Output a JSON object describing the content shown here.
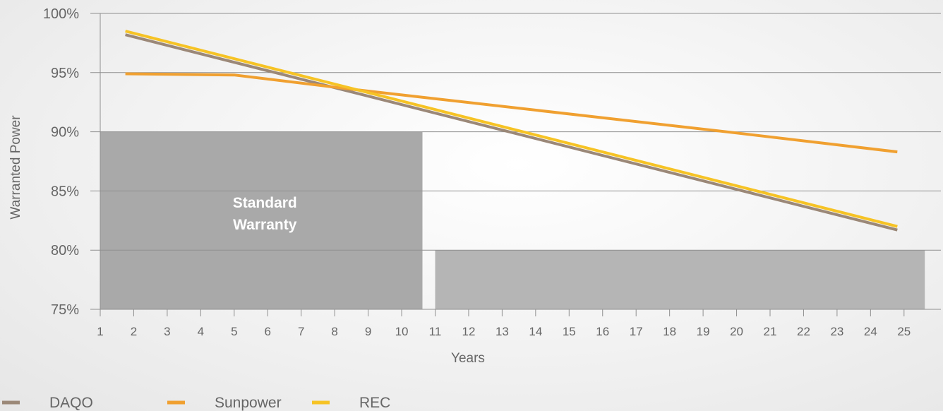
{
  "chart_data": {
    "type": "line",
    "xlabel": "Years",
    "ylabel": "Warranted Power",
    "x_ticks": [
      1,
      2,
      3,
      4,
      5,
      6,
      7,
      8,
      9,
      10,
      11,
      12,
      13,
      14,
      15,
      16,
      17,
      18,
      19,
      20,
      21,
      22,
      23,
      24,
      25
    ],
    "y_ticks": [
      "75%",
      "80%",
      "85%",
      "90%",
      "95%",
      "100%"
    ],
    "ylim": [
      75,
      100
    ],
    "xlim": [
      1,
      26
    ],
    "grid": "horizontal",
    "legend_position": "bottom-left",
    "series": [
      {
        "name": "DAQO",
        "color": "#9b8878",
        "points": [
          [
            1.75,
            98.2
          ],
          [
            24.8,
            81.7
          ]
        ]
      },
      {
        "name": "Sunpower",
        "color": "#f0a030",
        "points": [
          [
            1.75,
            94.9
          ],
          [
            5,
            94.8
          ],
          [
            8.5,
            93.6
          ],
          [
            20,
            89.9
          ],
          [
            24.8,
            88.3
          ]
        ]
      },
      {
        "name": "REC",
        "color": "#f6c325",
        "points": [
          [
            1.75,
            98.5
          ],
          [
            24.8,
            82.0
          ]
        ]
      }
    ],
    "shaded_regions": [
      {
        "label_lines": [
          "Standard",
          "Warranty"
        ],
        "color": "#a9a9a9",
        "x_start": 1,
        "x_end": 11,
        "y_top": 90
      },
      {
        "label_lines": [],
        "color": "#b5b5b5",
        "x_start": 11,
        "x_end": 26,
        "y_top": 80
      }
    ]
  }
}
